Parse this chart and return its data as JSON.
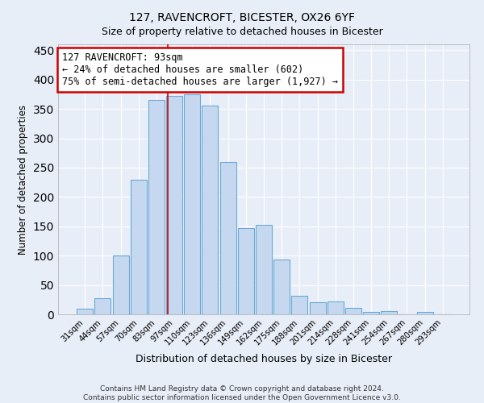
{
  "title": "127, RAVENCROFT, BICESTER, OX26 6YF",
  "subtitle": "Size of property relative to detached houses in Bicester",
  "xlabel": "Distribution of detached houses by size in Bicester",
  "ylabel": "Number of detached properties",
  "categories": [
    "31sqm",
    "44sqm",
    "57sqm",
    "70sqm",
    "83sqm",
    "97sqm",
    "110sqm",
    "123sqm",
    "136sqm",
    "149sqm",
    "162sqm",
    "175sqm",
    "188sqm",
    "201sqm",
    "214sqm",
    "228sqm",
    "241sqm",
    "254sqm",
    "267sqm",
    "280sqm",
    "293sqm"
  ],
  "values": [
    10,
    28,
    100,
    230,
    365,
    372,
    375,
    355,
    260,
    147,
    153,
    94,
    31,
    20,
    22,
    11,
    4,
    6,
    0,
    4,
    0
  ],
  "bar_color": "#c5d8f0",
  "bar_edge_color": "#6aaad4",
  "vline_x_index": 4.62,
  "vline_color": "#cc0000",
  "annotation_text": "127 RAVENCROFT: 93sqm\n← 24% of detached houses are smaller (602)\n75% of semi-detached houses are larger (1,927) →",
  "annotation_box_color": "white",
  "annotation_box_edge_color": "#cc0000",
  "ylim": [
    0,
    460
  ],
  "yticks": [
    0,
    50,
    100,
    150,
    200,
    250,
    300,
    350,
    400,
    450
  ],
  "footer": "Contains HM Land Registry data © Crown copyright and database right 2024.\nContains public sector information licensed under the Open Government Licence v3.0.",
  "bg_color": "#e8eef8",
  "plot_bg_color": "#e8eef8",
  "grid_color": "#ffffff",
  "title_fontsize": 10,
  "subtitle_fontsize": 9,
  "bar_width": 0.9,
  "annot_fontsize": 8.5
}
